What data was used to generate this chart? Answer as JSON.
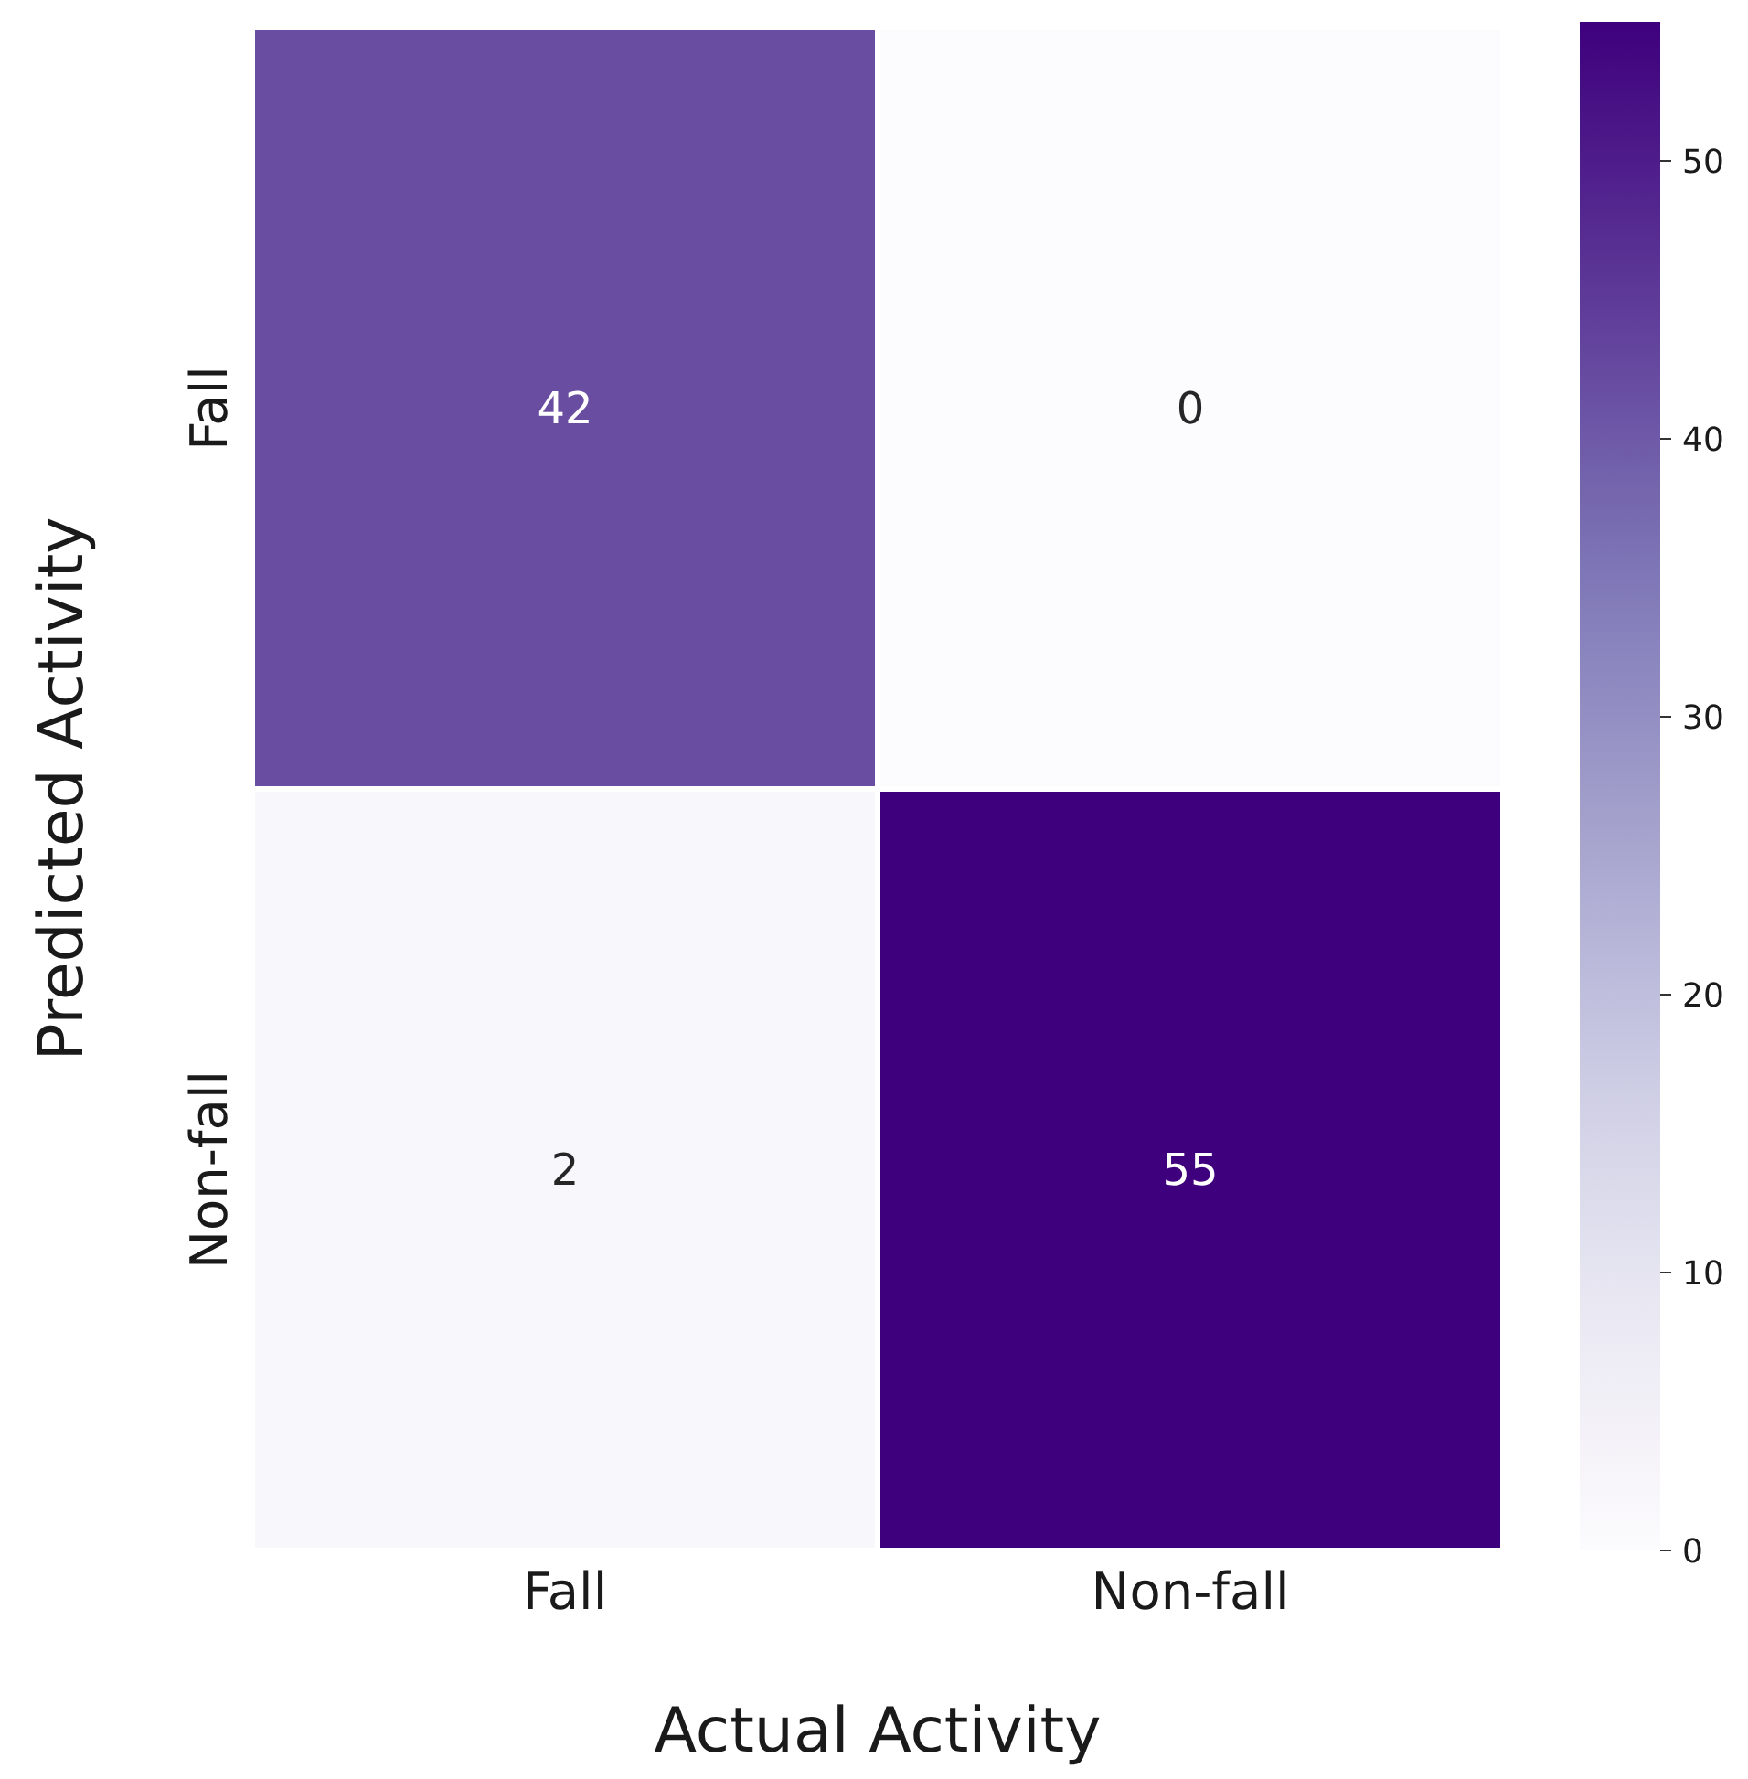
{
  "chart_data": {
    "type": "heatmap",
    "xlabel": "Actual Activity",
    "ylabel": "Predicted Activity",
    "categories": [
      "Fall",
      "Non-fall"
    ],
    "y_categories": [
      "Fall",
      "Non-fall"
    ],
    "cells": [
      [
        42,
        0
      ],
      [
        2,
        55
      ]
    ],
    "data_labels": true,
    "clim": [
      0,
      55
    ],
    "cticks": [
      0,
      10,
      20,
      30,
      40,
      50
    ]
  }
}
